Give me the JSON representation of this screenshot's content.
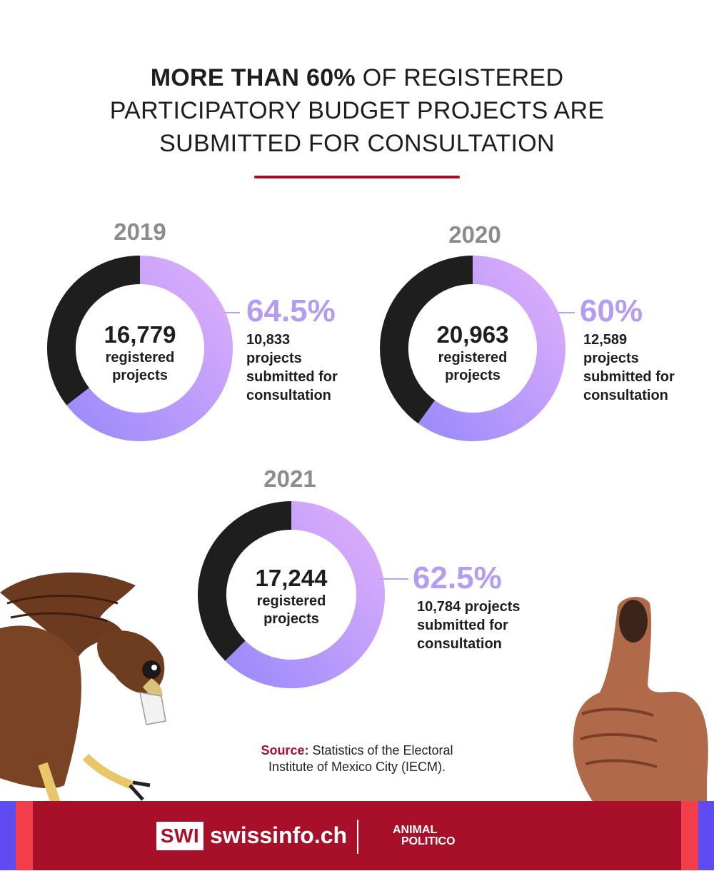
{
  "title": {
    "bold": "MORE THAN 60%",
    "line1_rest": " OF REGISTERED",
    "line2": "PARTICIPATORY BUDGET PROJECTS ARE",
    "line3": "SUBMITTED FOR CONSULTATION"
  },
  "colors": {
    "dark": "#1e1e1e",
    "gradient_start": "#9d8bfb",
    "gradient_end": "#ddaefb",
    "accent_red": "#a8102a",
    "percent_purple": "#b59cf3",
    "year_gray": "#8c8c8c"
  },
  "chart_data": [
    {
      "type": "pie",
      "title": "2019",
      "center_value": "16,779",
      "center_label": [
        "registered",
        "projects"
      ],
      "total": 16779,
      "submitted": 10833,
      "percent": 64.5,
      "percent_label": "64.5%",
      "desc_lines": [
        "10,833",
        "projects",
        "submitted for",
        "consultation"
      ]
    },
    {
      "type": "pie",
      "title": "2020",
      "center_value": "20,963",
      "center_label": [
        "registered",
        "projects"
      ],
      "total": 20963,
      "submitted": 12589,
      "percent": 60,
      "percent_label": "60%",
      "desc_lines": [
        "12,589",
        "projects",
        "submitted for",
        "consultation"
      ]
    },
    {
      "type": "pie",
      "title": "2021",
      "center_value": "17,244",
      "center_label": [
        "registered",
        "projects"
      ],
      "total": 17244,
      "submitted": 10784,
      "percent": 62.5,
      "percent_label": "62.5%",
      "desc_lines": [
        "10,784 projects",
        "submitted for",
        "consultation"
      ]
    }
  ],
  "source": {
    "label": "Source:",
    "line1": " Statistics of the Electoral",
    "line2": "Institute of Mexico City (IECM)."
  },
  "footer": {
    "swi_box": "SWI",
    "swi_domain": "swissinfo.ch",
    "partner_line1": "ANIMAL",
    "partner_line2": "POLITICO"
  },
  "illustrations": {
    "left": "eagle-icon",
    "right": "thumbs-up-icon"
  }
}
